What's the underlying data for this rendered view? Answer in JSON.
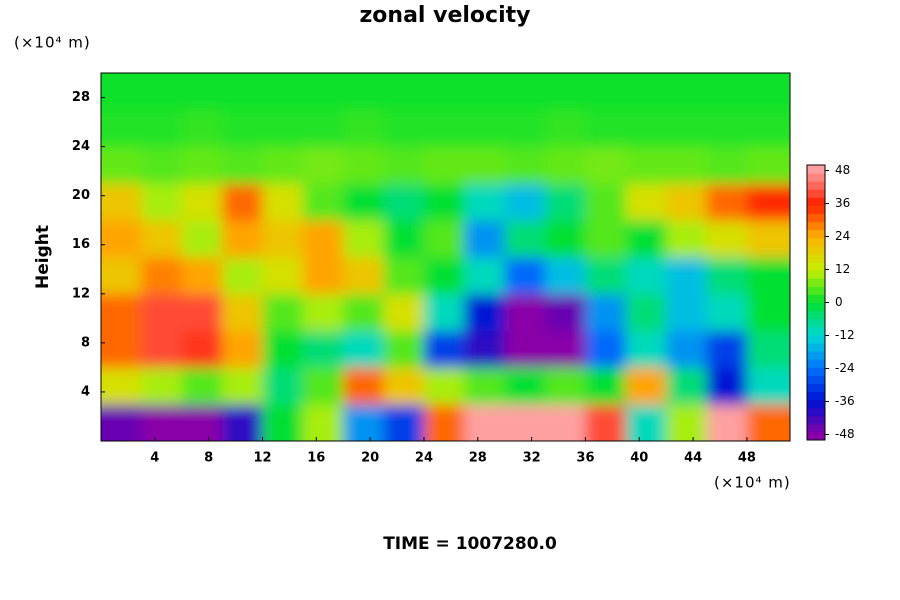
{
  "chart_data": {
    "type": "heatmap",
    "title": "zonal velocity",
    "y_label": "Height",
    "x_unit": "(×10⁴ m)",
    "y_unit": "(×10⁴ m)",
    "footer": "TIME = 1007280.0",
    "x": [
      1.5,
      4.5,
      7.5,
      10.5,
      13.5,
      16.5,
      19.5,
      22.5,
      25.5,
      28.5,
      31.5,
      34.5,
      37.5,
      40.5,
      43.5,
      46.5,
      49.5
    ],
    "y": [
      1.5,
      4.5,
      7.5,
      10.5,
      13.5,
      16.5,
      19.5,
      22.5,
      25.5,
      28.5
    ],
    "z": [
      [
        -45,
        -48,
        -48,
        -40,
        0,
        10,
        -20,
        -30,
        30,
        48,
        48,
        48,
        40,
        -10,
        10,
        48,
        30
      ],
      [
        15,
        10,
        5,
        10,
        -5,
        5,
        30,
        20,
        10,
        5,
        0,
        5,
        0,
        25,
        -5,
        -35,
        -10
      ],
      [
        30,
        40,
        38,
        25,
        0,
        -5,
        -10,
        5,
        -30,
        -40,
        -48,
        -48,
        -25,
        -10,
        -20,
        -30,
        -5
      ],
      [
        30,
        40,
        40,
        20,
        5,
        10,
        5,
        15,
        -10,
        -35,
        -48,
        -45,
        -20,
        -5,
        -15,
        -10,
        0
      ],
      [
        20,
        28,
        25,
        10,
        15,
        25,
        20,
        5,
        0,
        -10,
        -25,
        -15,
        -5,
        -10,
        -15,
        -5,
        0
      ],
      [
        25,
        20,
        10,
        25,
        20,
        25,
        10,
        0,
        5,
        -20,
        -5,
        0,
        5,
        0,
        10,
        15,
        20
      ],
      [
        20,
        10,
        15,
        30,
        15,
        5,
        0,
        -5,
        0,
        -10,
        -15,
        -5,
        5,
        15,
        20,
        30,
        35
      ],
      [
        6,
        5,
        6,
        5,
        6,
        7,
        6,
        5,
        6,
        6,
        5,
        6,
        7,
        6,
        6,
        5,
        6
      ],
      [
        2,
        2,
        3,
        2,
        2,
        2,
        3,
        2,
        2,
        2,
        2,
        3,
        2,
        2,
        2,
        2,
        2
      ],
      [
        1,
        1,
        1,
        1,
        1,
        1,
        1,
        1,
        1,
        1,
        1,
        1,
        1,
        1,
        1,
        1,
        1
      ]
    ],
    "xlim": [
      0,
      51.2
    ],
    "ylim": [
      0,
      30
    ],
    "xticks": [
      4,
      8,
      12,
      16,
      20,
      24,
      28,
      32,
      36,
      40,
      44,
      48
    ],
    "yticks": [
      4,
      8,
      12,
      16,
      20,
      24,
      28
    ],
    "zlim": [
      -50,
      50
    ],
    "zticks": [
      -48,
      -36,
      -24,
      -12,
      0,
      12,
      24,
      36,
      48
    ],
    "colors": [
      "#8a00a8",
      "#0010d0",
      "#0070ff",
      "#00d8d8",
      "#00e030",
      "#c8f000",
      "#ffb000",
      "#ff2000",
      "#ffa0a0"
    ]
  }
}
